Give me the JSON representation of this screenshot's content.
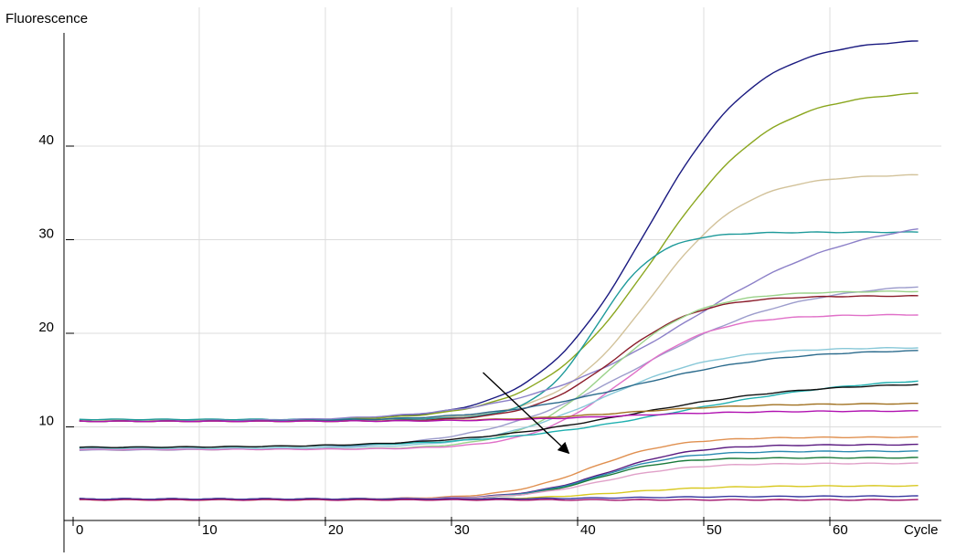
{
  "chart_data": {
    "type": "line",
    "ylabel": "Fluorescence",
    "xlabel": "Cycle",
    "xlim": [
      0,
      68
    ],
    "ylim": [
      0,
      51
    ],
    "xticks": [
      0,
      10,
      20,
      30,
      40,
      50,
      60
    ],
    "yticks": [
      10,
      20,
      30,
      40
    ],
    "grid": true,
    "series": [
      {
        "color": "#1a1a80",
        "base": 10.7,
        "plateau": 51.5,
        "mid": 45.5,
        "k": 0.23
      },
      {
        "color": "#8aa61e",
        "base": 10.7,
        "plateau": 46.0,
        "mid": 46.2,
        "k": 0.22
      },
      {
        "color": "#d2c29a",
        "base": 10.7,
        "plateau": 37.0,
        "mid": 45.8,
        "k": 0.27
      },
      {
        "color": "#1e9a9a",
        "base": 10.8,
        "plateau": 30.8,
        "mid": 41.5,
        "k": 0.42
      },
      {
        "color": "#8c80c8",
        "base": 10.6,
        "plateau": 32.5,
        "mid": 49.0,
        "k": 0.15
      },
      {
        "color": "#9c9ccc",
        "base": 7.5,
        "plateau": 25.5,
        "mid": 45.0,
        "k": 0.16
      },
      {
        "color": "#8a1c2a",
        "base": 10.6,
        "plateau": 24.0,
        "mid": 43.0,
        "k": 0.3
      },
      {
        "color": "#9ad28a",
        "base": 7.6,
        "plateau": 24.5,
        "mid": 42.5,
        "k": 0.28
      },
      {
        "color": "#e070c8",
        "base": 7.6,
        "plateau": 22.0,
        "mid": 43.5,
        "k": 0.28
      },
      {
        "color": "#88c8d8",
        "base": 7.7,
        "plateau": 18.5,
        "mid": 42.0,
        "k": 0.22
      },
      {
        "color": "#2a6a8c",
        "base": 10.6,
        "plateau": 18.3,
        "mid": 44.5,
        "k": 0.17
      },
      {
        "color": "#20b0b0",
        "base": 7.8,
        "plateau": 15.5,
        "mid": 48.0,
        "k": 0.13
      },
      {
        "color": "#101010",
        "base": 7.8,
        "plateau": 14.8,
        "mid": 44.0,
        "k": 0.14
      },
      {
        "color": "#a07020",
        "base": 10.6,
        "plateau": 12.5,
        "mid": 44.0,
        "k": 0.2
      },
      {
        "color": "#b010b0",
        "base": 10.6,
        "plateau": 11.7,
        "mid": 43.0,
        "k": 0.2
      },
      {
        "color": "#e09050",
        "base": 2.3,
        "plateau": 8.9,
        "mid": 41.0,
        "k": 0.3
      },
      {
        "color": "#5a1a80",
        "base": 2.3,
        "plateau": 8.1,
        "mid": 42.5,
        "k": 0.3
      },
      {
        "color": "#2a8ab0",
        "base": 2.3,
        "plateau": 7.4,
        "mid": 42.0,
        "k": 0.32
      },
      {
        "color": "#1a7a3a",
        "base": 2.3,
        "plateau": 6.7,
        "mid": 41.5,
        "k": 0.35
      },
      {
        "color": "#e0a0c8",
        "base": 2.3,
        "plateau": 6.1,
        "mid": 42.0,
        "k": 0.3
      },
      {
        "color": "#d8c820",
        "base": 2.2,
        "plateau": 3.7,
        "mid": 43.0,
        "k": 0.25
      },
      {
        "color": "#3838a0",
        "base": 2.3,
        "plateau": 2.6,
        "mid": 45.0,
        "k": 0.2
      },
      {
        "color": "#a0106a",
        "base": 2.2,
        "plateau": 2.2,
        "mid": 45.0,
        "k": 0.2
      }
    ],
    "arrow": {
      "from": [
        32.5,
        15.8
      ],
      "to": [
        39.3,
        7.2
      ]
    }
  }
}
